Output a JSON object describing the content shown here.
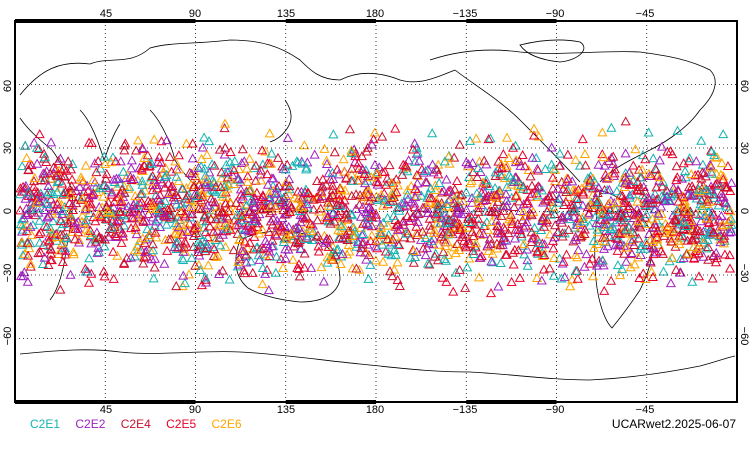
{
  "map": {
    "top_lon_ticks": [
      "45",
      "90",
      "135",
      "180",
      "−135",
      "−90",
      "−45"
    ],
    "bottom_lon_ticks": [
      "45",
      "90",
      "135",
      "180",
      "−135",
      "−90",
      "−45"
    ],
    "lat_ticks": [
      "60",
      "30",
      "0",
      "−30",
      "−60"
    ],
    "marker_shape": "triangle-outline",
    "observation_lat_range": [
      -45,
      45
    ]
  },
  "legend": [
    {
      "label": "C2E1",
      "color": "#14b3b3"
    },
    {
      "label": "C2E2",
      "color": "#a020c0"
    },
    {
      "label": "C2E4",
      "color": "#c8102e"
    },
    {
      "label": "C2E5",
      "color": "#e8002a"
    },
    {
      "label": "C2E6",
      "color": "#ffa500"
    }
  ],
  "stamp": "UCARwet2.2025-06-07"
}
